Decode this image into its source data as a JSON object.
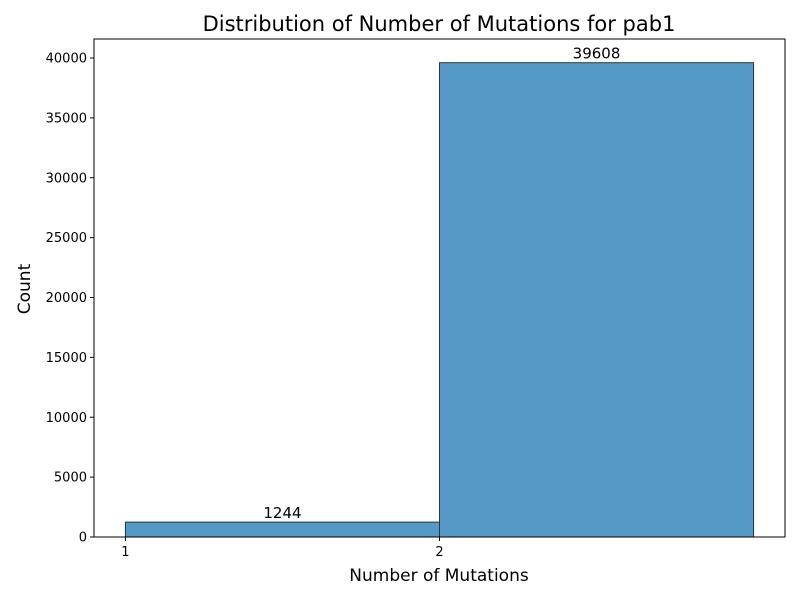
{
  "chart_data": {
    "type": "bar",
    "title": "Distribution of Number of Mutations for pab1",
    "xlabel": "Number of Mutations",
    "ylabel": "Count",
    "bins": [
      {
        "start": 1,
        "end": 2,
        "value": 1244,
        "label": "1244"
      },
      {
        "start": 2,
        "end": 3,
        "value": 39608,
        "label": "39608"
      }
    ],
    "x_ticks": [
      {
        "value": 1,
        "label": "1"
      },
      {
        "value": 2,
        "label": "2"
      }
    ],
    "y_ticks": [
      {
        "value": 0,
        "label": "0"
      },
      {
        "value": 5000,
        "label": "5000"
      },
      {
        "value": 10000,
        "label": "10000"
      },
      {
        "value": 15000,
        "label": "15000"
      },
      {
        "value": 20000,
        "label": "20000"
      },
      {
        "value": 25000,
        "label": "25000"
      },
      {
        "value": 30000,
        "label": "30000"
      },
      {
        "value": 35000,
        "label": "35000"
      },
      {
        "value": 40000,
        "label": "40000"
      }
    ],
    "xlim": [
      0.9,
      3.1
    ],
    "ylim": [
      0,
      41588
    ],
    "grid": false,
    "legend": "none",
    "colors": {
      "bar_fill": "#5599c7",
      "bar_edge": "#2b3440",
      "axis": "#000000"
    }
  }
}
